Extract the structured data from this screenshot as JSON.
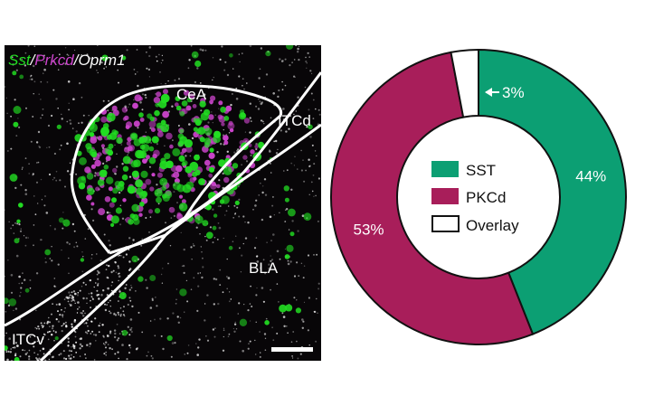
{
  "micrograph": {
    "title": {
      "sst": "Sst",
      "sep1": "/",
      "prkcd": "Prkcd",
      "sep2": "/",
      "oprm1": "Oprm1"
    },
    "regions": {
      "cea": "CeA",
      "itcd": "ITCd",
      "bla": "BLA",
      "itcv": "ITCv"
    },
    "colors": {
      "sst": "#22dd22",
      "prkcd": "#cc44cc",
      "oprm1": "#ffffff",
      "background": "#080608"
    }
  },
  "chart_data": {
    "type": "pie",
    "variant": "donut",
    "slices": [
      {
        "name": "SST",
        "value": 44,
        "label": "44%",
        "color": "#0c9f73"
      },
      {
        "name": "PKCd",
        "value": 53,
        "label": "53%",
        "color": "#a81e5a"
      },
      {
        "name": "Overlay",
        "value": 3,
        "label": "3%",
        "color": "#ffffff"
      }
    ],
    "legend": {
      "placement": "center",
      "items": [
        "SST",
        "PKCd",
        "Overlay"
      ]
    }
  }
}
